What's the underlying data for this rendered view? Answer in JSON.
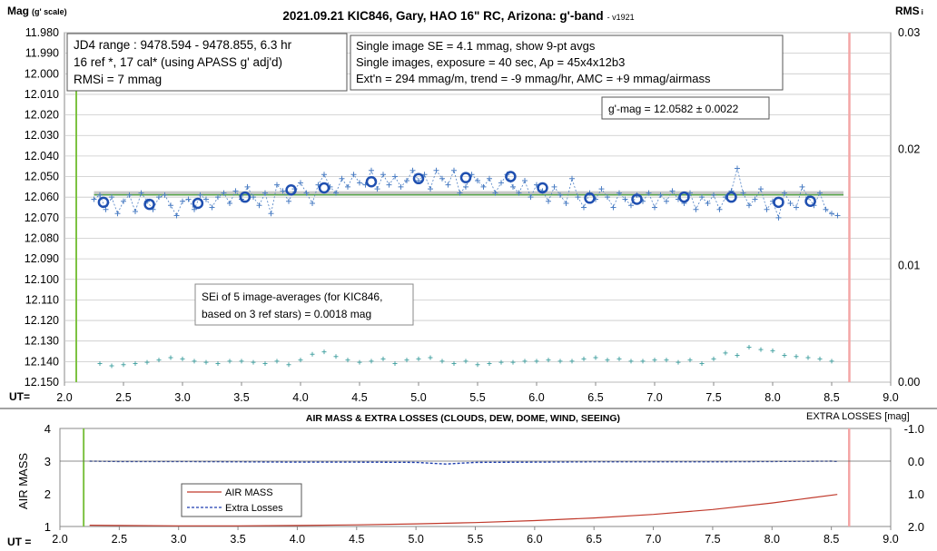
{
  "chart_data": [
    {
      "type": "scatter",
      "title": "2021.09.21 KIC846, Gary, HAO 16\" RC, Arizona: g'-band",
      "version": "- v1921",
      "ylabel_main": "Mag",
      "ylabel_sub": "(g' scale)",
      "y2label_main": "RMS",
      "y2label_sub": "i",
      "xlabel": "UT=",
      "xlim": [
        2.0,
        9.0
      ],
      "ylim": [
        12.15,
        11.98
      ],
      "y2lim": [
        0.0,
        0.03
      ],
      "x_ticks": [
        "2.0",
        "2.5",
        "3.0",
        "3.5",
        "4.0",
        "4.5",
        "5.0",
        "5.5",
        "6.0",
        "6.5",
        "7.0",
        "7.5",
        "8.0",
        "8.5",
        "9.0"
      ],
      "y_ticks": [
        "11.980",
        "11.990",
        "12.000",
        "12.010",
        "12.020",
        "12.030",
        "12.040",
        "12.050",
        "12.060",
        "12.070",
        "12.080",
        "12.090",
        "12.100",
        "12.110",
        "12.120",
        "12.130",
        "12.140",
        "12.150"
      ],
      "y2_ticks": [
        "0.03",
        "0.02",
        "0.01",
        "0.00"
      ],
      "mean_mag": 12.0582,
      "vertical_markers": {
        "start_ut": 2.1,
        "end_ut": 8.65,
        "start_color": "#7dc242",
        "end_color": "#f4a6a6"
      },
      "annotations": {
        "box1": [
          "JD4 range : 9478.594 - 9478.855,  6.3  hr",
          "16 ref *, 17 cal* (using APASS g' adj'd)",
          "RMSi = 7 mmag"
        ],
        "box2": [
          "Single image SE = 4.1 mmag, show  9-pt avgs",
          "Single images, exposure = 40 sec, Ap = 45x4x12b3",
          "Ext'n = 294 mmag/m, trend = -9 mmag/hr, AMC = +9 mmag/airmass"
        ],
        "box3": "g'-mag = 12.0582 ± 0.0022",
        "box4": [
          "SEi of 5 image-averages (for KIC846,",
          "based on 3 ref stars) = 0.0018 mag"
        ]
      },
      "series": [
        {
          "role": "avg",
          "x": [
            2.33,
            2.72,
            3.13,
            3.53,
            3.92,
            4.2,
            4.6,
            5.0,
            5.4,
            5.78,
            6.05,
            6.45,
            6.85,
            7.25,
            7.65,
            8.05,
            8.32
          ],
          "y": [
            12.0625,
            12.0635,
            12.063,
            12.06,
            12.0565,
            12.0555,
            12.0525,
            12.051,
            12.0505,
            12.05,
            12.0555,
            12.0605,
            12.061,
            12.06,
            12.06,
            12.0625,
            12.062
          ],
          "color": "#1f4fb0"
        },
        {
          "role": "single",
          "x": [
            2.25,
            2.3,
            2.35,
            2.4,
            2.45,
            2.5,
            2.55,
            2.6,
            2.65,
            2.7,
            2.75,
            2.8,
            2.85,
            2.9,
            2.95,
            3.0,
            3.05,
            3.1,
            3.15,
            3.2,
            3.25,
            3.3,
            3.35,
            3.4,
            3.45,
            3.5,
            3.55,
            3.6,
            3.65,
            3.7,
            3.75,
            3.8,
            3.85,
            3.9,
            3.95,
            4.0,
            4.05,
            4.1,
            4.15,
            4.2,
            4.25,
            4.3,
            4.35,
            4.4,
            4.45,
            4.5,
            4.55,
            4.6,
            4.65,
            4.7,
            4.75,
            4.8,
            4.85,
            4.9,
            4.95,
            5.0,
            5.05,
            5.1,
            5.15,
            5.2,
            5.25,
            5.3,
            5.35,
            5.4,
            5.45,
            5.5,
            5.55,
            5.6,
            5.65,
            5.7,
            5.75,
            5.8,
            5.85,
            5.9,
            5.95,
            6.0,
            6.05,
            6.1,
            6.15,
            6.2,
            6.25,
            6.3,
            6.35,
            6.4,
            6.45,
            6.5,
            6.55,
            6.6,
            6.65,
            6.7,
            6.75,
            6.8,
            6.85,
            6.9,
            6.95,
            7.0,
            7.05,
            7.1,
            7.15,
            7.2,
            7.25,
            7.3,
            7.35,
            7.4,
            7.45,
            7.5,
            7.55,
            7.6,
            7.65,
            7.7,
            7.75,
            7.8,
            7.85,
            7.9,
            7.95,
            8.0,
            8.05,
            8.1,
            8.15,
            8.2,
            8.25,
            8.3,
            8.35,
            8.4,
            8.45,
            8.5,
            8.55
          ],
          "y": [
            12.061,
            12.059,
            12.066,
            12.06,
            12.068,
            12.062,
            12.059,
            12.067,
            12.058,
            12.062,
            12.066,
            12.06,
            12.059,
            12.064,
            12.069,
            12.062,
            12.061,
            12.066,
            12.059,
            12.061,
            12.065,
            12.06,
            12.058,
            12.063,
            12.057,
            12.061,
            12.055,
            12.06,
            12.064,
            12.058,
            12.068,
            12.054,
            12.057,
            12.062,
            12.056,
            12.053,
            12.058,
            12.063,
            12.054,
            12.049,
            12.055,
            12.058,
            12.051,
            12.055,
            12.049,
            12.053,
            12.054,
            12.047,
            12.056,
            12.049,
            12.054,
            12.05,
            12.055,
            12.052,
            12.047,
            12.052,
            12.049,
            12.056,
            12.047,
            12.051,
            12.054,
            12.047,
            12.058,
            12.055,
            12.049,
            12.052,
            12.055,
            12.051,
            12.058,
            12.053,
            12.049,
            12.055,
            12.058,
            12.052,
            12.06,
            12.054,
            12.057,
            12.062,
            12.055,
            12.059,
            12.063,
            12.051,
            12.06,
            12.065,
            12.058,
            12.061,
            12.056,
            12.06,
            12.065,
            12.058,
            12.061,
            12.064,
            12.059,
            12.062,
            12.058,
            12.065,
            12.059,
            12.062,
            12.057,
            12.061,
            12.063,
            12.058,
            12.066,
            12.06,
            12.063,
            12.059,
            12.066,
            12.06,
            12.057,
            12.046,
            12.058,
            12.064,
            12.061,
            12.056,
            12.066,
            12.062,
            12.07,
            12.058,
            12.063,
            12.065,
            12.055,
            12.06,
            12.064,
            12.058,
            12.066,
            12.068,
            12.069
          ],
          "color": "#4d7fc4"
        },
        {
          "role": "rms_i",
          "x": [
            2.3,
            2.4,
            2.5,
            2.6,
            2.7,
            2.8,
            2.9,
            3.0,
            3.1,
            3.2,
            3.3,
            3.4,
            3.5,
            3.6,
            3.7,
            3.8,
            3.9,
            4.0,
            4.1,
            4.2,
            4.3,
            4.4,
            4.5,
            4.6,
            4.7,
            4.8,
            4.9,
            5.0,
            5.1,
            5.2,
            5.3,
            5.4,
            5.5,
            5.6,
            5.7,
            5.8,
            5.9,
            6.0,
            6.1,
            6.2,
            6.3,
            6.4,
            6.5,
            6.6,
            6.7,
            6.8,
            6.9,
            7.0,
            7.1,
            7.2,
            7.3,
            7.4,
            7.5,
            7.6,
            7.7,
            7.8,
            7.9,
            8.0,
            8.1,
            8.2,
            8.3,
            8.4,
            8.5
          ],
          "y": [
            0.0016,
            0.0014,
            0.0015,
            0.0016,
            0.0017,
            0.0019,
            0.0021,
            0.002,
            0.0018,
            0.0017,
            0.0016,
            0.0018,
            0.0018,
            0.0017,
            0.0016,
            0.0018,
            0.0015,
            0.0019,
            0.0024,
            0.0026,
            0.0022,
            0.0019,
            0.0017,
            0.0018,
            0.002,
            0.0016,
            0.0019,
            0.002,
            0.0021,
            0.0018,
            0.0016,
            0.0018,
            0.0015,
            0.0016,
            0.0017,
            0.0017,
            0.0018,
            0.0018,
            0.0019,
            0.0018,
            0.0018,
            0.002,
            0.0021,
            0.0019,
            0.002,
            0.0018,
            0.0018,
            0.0019,
            0.0019,
            0.0017,
            0.0019,
            0.0016,
            0.002,
            0.0025,
            0.0023,
            0.003,
            0.0028,
            0.0027,
            0.0023,
            0.0022,
            0.0021,
            0.002,
            0.0018
          ],
          "color": "#4aa4a4"
        }
      ]
    },
    {
      "type": "line",
      "title": "AIR MASS & EXTRA LOSSES (CLOUDS, DEW, DOME, WIND, SEEING)",
      "ylabel": "AIR MASS",
      "y2label": "EXTRA LOSSES [mag]",
      "xlabel": "UT =",
      "xlim": [
        2.0,
        9.0
      ],
      "ylim": [
        1,
        4
      ],
      "y2lim": [
        2.0,
        -1.0
      ],
      "x_ticks": [
        "2.0",
        "2.5",
        "3.0",
        "3.5",
        "4.0",
        "4.5",
        "5.0",
        "5.5",
        "6.0",
        "6.5",
        "7.0",
        "7.5",
        "8.0",
        "8.5",
        "9.0"
      ],
      "y_ticks": [
        "1",
        "2",
        "3",
        "4"
      ],
      "y2_ticks": [
        "-1.0",
        "0.0",
        "1.0",
        "2.0"
      ],
      "legend": {
        "airmass": "AIR MASS",
        "extra": "Extra Losses"
      },
      "series": [
        {
          "name": "AIR MASS",
          "color": "#c0392b",
          "x": [
            2.25,
            2.5,
            3.0,
            3.5,
            4.0,
            4.5,
            5.0,
            5.5,
            6.0,
            6.5,
            7.0,
            7.5,
            8.0,
            8.25,
            8.55
          ],
          "y": [
            1.04,
            1.03,
            1.02,
            1.02,
            1.03,
            1.05,
            1.08,
            1.12,
            1.18,
            1.26,
            1.37,
            1.52,
            1.72,
            1.84,
            1.98
          ]
        },
        {
          "name": "Extra Losses",
          "color": "#1f3fb0",
          "x": [
            2.25,
            2.5,
            3.0,
            3.5,
            4.0,
            4.5,
            5.0,
            5.25,
            5.5,
            6.0,
            6.5,
            7.0,
            7.5,
            8.0,
            8.5,
            8.55
          ],
          "y": [
            0.0,
            0.01,
            0.01,
            0.02,
            0.03,
            0.03,
            0.04,
            0.09,
            0.04,
            0.03,
            0.02,
            0.02,
            0.02,
            0.01,
            0.0,
            0.01
          ]
        }
      ]
    }
  ]
}
